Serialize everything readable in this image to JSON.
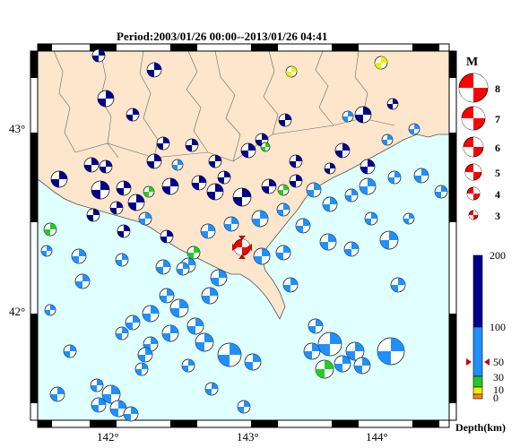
{
  "title": "Period:2003/01/26 00:00--2013/01/26 04:41",
  "axes": {
    "lon_ticks": [
      "142°",
      "143°",
      "144°"
    ],
    "lat_ticks": [
      "43°",
      "42°"
    ]
  },
  "magnitude_legend": {
    "title": "M",
    "values": [
      "8",
      "7",
      "6",
      "5",
      "4",
      "3"
    ]
  },
  "depth_scale": {
    "ticks": [
      "200",
      "100",
      "50",
      "30",
      "10",
      "0"
    ],
    "label": "Depth(km)",
    "colors": {
      "deep": "#00008b",
      "mid": "#1e90ff",
      "shallow30": "#22cc22",
      "shallow10": "#eeee00",
      "surface": "#ff8800"
    },
    "event_marker_depth": 50
  },
  "colors": {
    "land": "#fde6cc",
    "sea": "#e0ffff",
    "highlight": "#ff0000"
  }
}
